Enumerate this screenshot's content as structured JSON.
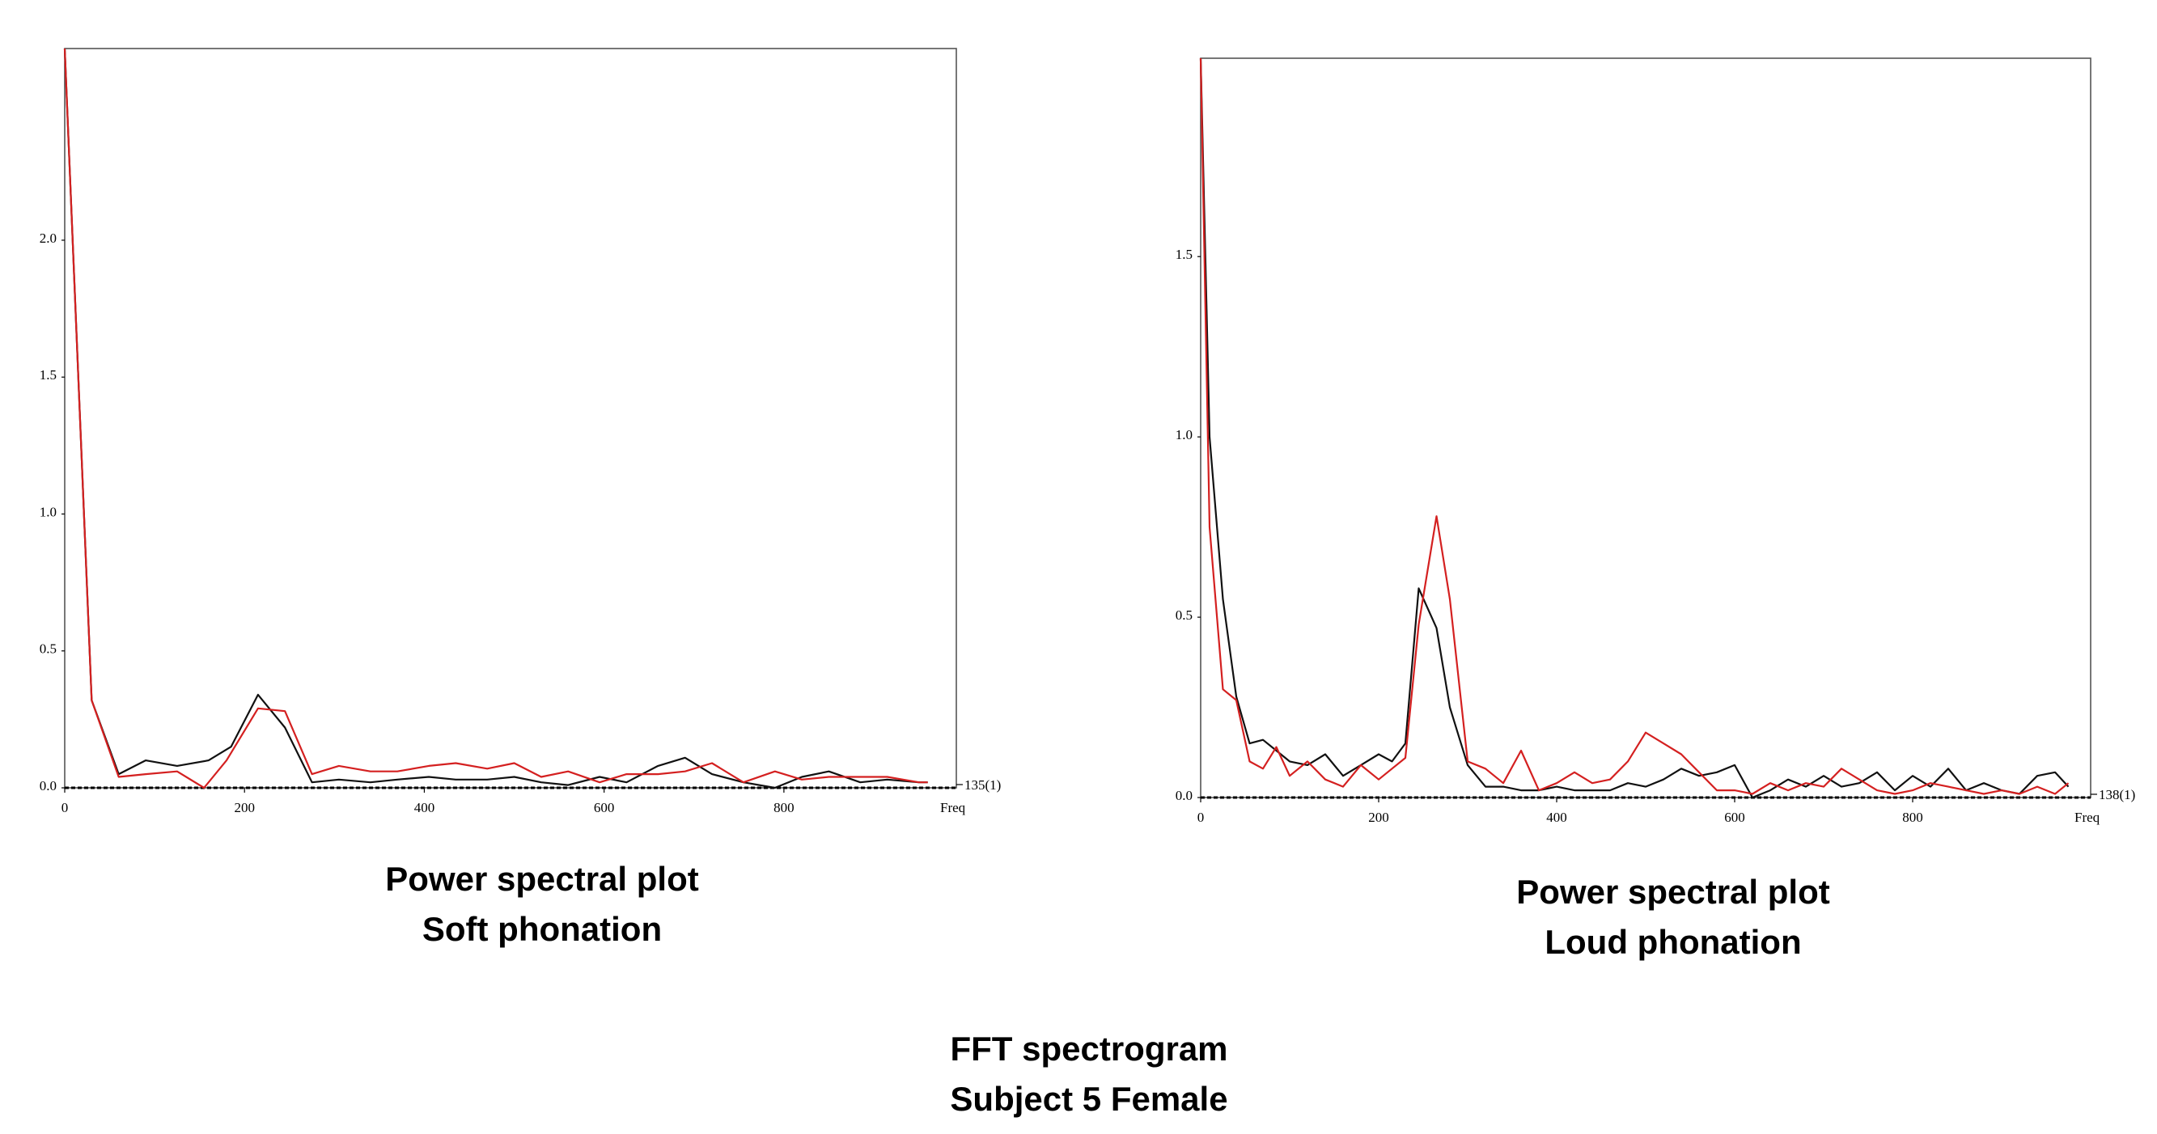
{
  "figure": {
    "title_line1": "FFT spectrogram",
    "title_line2": "Subject 5 Female"
  },
  "colors": {
    "series_black": "#111111",
    "series_red": "#d42020",
    "frame": "#555555",
    "baseline": "#000000"
  },
  "chart_data": [
    {
      "type": "line",
      "caption_line1": "Power spectral plot",
      "caption_line2": "Soft phonation",
      "xlabel": "Freq",
      "x_end_label": "135(1)",
      "xlim": [
        0,
        990
      ],
      "ylim": [
        0,
        2.7
      ],
      "xticks": [
        0,
        200,
        400,
        600,
        800
      ],
      "yticks": [
        0.0,
        0.5,
        1.0,
        1.5,
        2.0
      ],
      "ytick_labels": [
        "0.0",
        "0.5",
        "1.0",
        "1.5",
        "2.0"
      ],
      "grid": false,
      "series": [
        {
          "color": "black",
          "x": [
            0,
            30,
            60,
            90,
            125,
            160,
            185,
            215,
            245,
            275,
            305,
            340,
            370,
            405,
            435,
            470,
            500,
            530,
            560,
            595,
            625,
            660,
            690,
            720,
            755,
            790,
            820,
            850,
            885,
            915,
            950,
            960
          ],
          "y": [
            2.7,
            0.32,
            0.05,
            0.1,
            0.08,
            0.1,
            0.15,
            0.34,
            0.22,
            0.02,
            0.03,
            0.02,
            0.03,
            0.04,
            0.03,
            0.03,
            0.04,
            0.02,
            0.01,
            0.04,
            0.02,
            0.08,
            0.11,
            0.05,
            0.02,
            0.0,
            0.04,
            0.06,
            0.02,
            0.03,
            0.02,
            0.02
          ]
        },
        {
          "color": "red",
          "x": [
            0,
            30,
            60,
            90,
            125,
            155,
            180,
            215,
            245,
            275,
            305,
            340,
            370,
            405,
            435,
            470,
            500,
            530,
            560,
            595,
            625,
            660,
            690,
            720,
            755,
            790,
            820,
            850,
            885,
            915,
            950,
            960
          ],
          "y": [
            2.7,
            0.32,
            0.04,
            0.05,
            0.06,
            0.0,
            0.1,
            0.29,
            0.28,
            0.05,
            0.08,
            0.06,
            0.06,
            0.08,
            0.09,
            0.07,
            0.09,
            0.04,
            0.06,
            0.02,
            0.05,
            0.05,
            0.06,
            0.09,
            0.02,
            0.06,
            0.03,
            0.04,
            0.04,
            0.04,
            0.02,
            0.02
          ]
        }
      ]
    },
    {
      "type": "line",
      "caption_line1": "Power spectral plot",
      "caption_line2": "Loud phonation",
      "xlabel": "Freq",
      "x_end_label": "138(1)",
      "xlim": [
        0,
        1000
      ],
      "ylim": [
        0,
        2.05
      ],
      "xticks": [
        0,
        200,
        400,
        600,
        800
      ],
      "yticks": [
        0.0,
        0.5,
        1.0,
        1.5
      ],
      "ytick_labels": [
        "0.0",
        "0.5",
        "1.0",
        "1.5"
      ],
      "grid": false,
      "series": [
        {
          "color": "black",
          "x": [
            0,
            10,
            25,
            40,
            55,
            70,
            85,
            100,
            120,
            140,
            160,
            180,
            200,
            215,
            230,
            245,
            265,
            280,
            300,
            320,
            340,
            360,
            380,
            400,
            420,
            440,
            460,
            480,
            500,
            520,
            540,
            560,
            580,
            600,
            620,
            640,
            660,
            680,
            700,
            720,
            740,
            760,
            780,
            800,
            820,
            840,
            860,
            880,
            900,
            920,
            940,
            960,
            975
          ],
          "y": [
            2.05,
            1.0,
            0.55,
            0.28,
            0.15,
            0.16,
            0.13,
            0.1,
            0.09,
            0.12,
            0.06,
            0.09,
            0.12,
            0.1,
            0.15,
            0.58,
            0.47,
            0.25,
            0.09,
            0.03,
            0.03,
            0.02,
            0.02,
            0.03,
            0.02,
            0.02,
            0.02,
            0.04,
            0.03,
            0.05,
            0.08,
            0.06,
            0.07,
            0.09,
            0.0,
            0.02,
            0.05,
            0.03,
            0.06,
            0.03,
            0.04,
            0.07,
            0.02,
            0.06,
            0.03,
            0.08,
            0.02,
            0.04,
            0.02,
            0.01,
            0.06,
            0.07,
            0.03
          ]
        },
        {
          "color": "red",
          "x": [
            0,
            10,
            25,
            40,
            55,
            70,
            85,
            100,
            120,
            140,
            160,
            180,
            200,
            215,
            230,
            245,
            265,
            280,
            300,
            320,
            340,
            360,
            380,
            400,
            420,
            440,
            460,
            480,
            500,
            520,
            540,
            560,
            580,
            600,
            620,
            640,
            660,
            680,
            700,
            720,
            740,
            760,
            780,
            800,
            820,
            840,
            860,
            880,
            900,
            920,
            940,
            960,
            975
          ],
          "y": [
            2.05,
            0.75,
            0.3,
            0.27,
            0.1,
            0.08,
            0.14,
            0.06,
            0.1,
            0.05,
            0.03,
            0.09,
            0.05,
            0.08,
            0.11,
            0.48,
            0.78,
            0.55,
            0.1,
            0.08,
            0.04,
            0.13,
            0.02,
            0.04,
            0.07,
            0.04,
            0.05,
            0.1,
            0.18,
            0.15,
            0.12,
            0.07,
            0.02,
            0.02,
            0.01,
            0.04,
            0.02,
            0.04,
            0.03,
            0.08,
            0.05,
            0.02,
            0.01,
            0.02,
            0.04,
            0.03,
            0.02,
            0.01,
            0.02,
            0.01,
            0.03,
            0.01,
            0.04
          ]
        }
      ]
    }
  ]
}
